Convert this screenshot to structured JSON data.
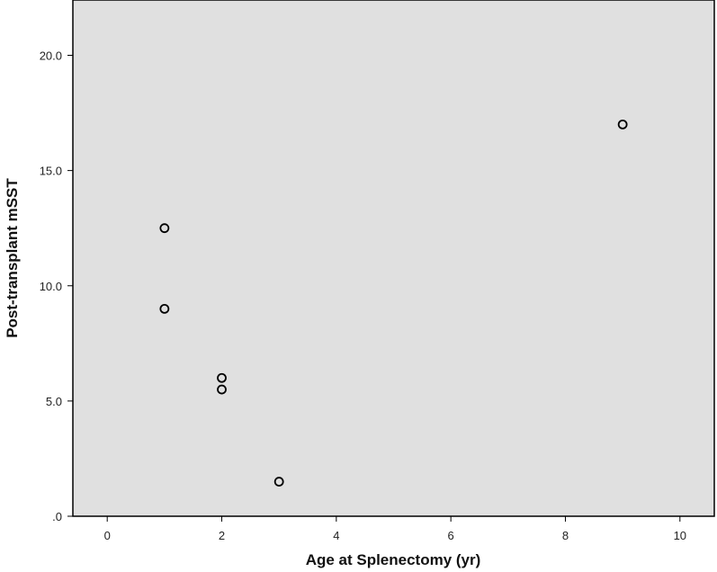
{
  "chart_data": {
    "type": "scatter",
    "title": "",
    "xlabel": "Age at Splenectomy (yr)",
    "ylabel": "Post-transplant mSST",
    "xlim": [
      -0.6,
      10.6
    ],
    "ylim": [
      0,
      22.4
    ],
    "x_ticks": [
      0,
      2,
      4,
      6,
      8,
      10
    ],
    "x_tick_labels": [
      "0",
      "2",
      "4",
      "6",
      "8",
      "10"
    ],
    "y_ticks": [
      0,
      5,
      10,
      15,
      20
    ],
    "y_tick_labels": [
      ".0",
      "5.0",
      "10.0",
      "15.0",
      "20.0"
    ],
    "grid": false,
    "legend": "none",
    "marker": "open-circle",
    "colors": {
      "plot_background": "#e0e0e0",
      "marker": "#000000",
      "axis": "#000000"
    },
    "points": [
      {
        "x": 1,
        "y": 12.5
      },
      {
        "x": 1,
        "y": 9.0
      },
      {
        "x": 2,
        "y": 6.0
      },
      {
        "x": 2,
        "y": 5.5
      },
      {
        "x": 3,
        "y": 1.5
      },
      {
        "x": 9,
        "y": 17.0
      }
    ]
  }
}
